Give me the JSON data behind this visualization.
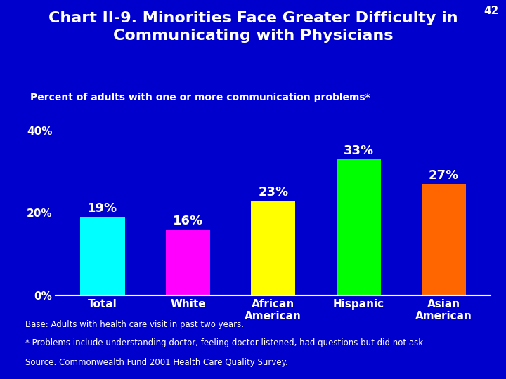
{
  "title": "Chart II-9. Minorities Face Greater Difficulty in\nCommunicating with Physicians",
  "subtitle": "Percent of adults with one or more communication problems*",
  "categories": [
    "Total",
    "White",
    "African\nAmerican",
    "Hispanic",
    "Asian\nAmerican"
  ],
  "values": [
    19,
    16,
    23,
    33,
    27
  ],
  "bar_colors": [
    "#00FFFF",
    "#FF00FF",
    "#FFFF00",
    "#00FF00",
    "#FF6600"
  ],
  "value_labels": [
    "19%",
    "16%",
    "23%",
    "33%",
    "27%"
  ],
  "yticks": [
    0,
    20,
    40
  ],
  "ytick_labels": [
    "0%",
    "20%",
    "40%"
  ],
  "ylim": [
    0,
    44
  ],
  "background_color": "#0000CC",
  "text_color": "#FFFFFF",
  "title_fontsize": 16,
  "subtitle_fontsize": 10,
  "tick_fontsize": 11,
  "bar_label_fontsize": 13,
  "footnote1": "Base: Adults with health care visit in past two years.",
  "footnote2": "* Problems include understanding doctor, feeling doctor listened, had questions but did not ask.",
  "footnote3": "Source: Commonwealth Fund 2001 Health Care Quality Survey.",
  "page_number": "42",
  "axis_line_color": "#FFFFFF"
}
